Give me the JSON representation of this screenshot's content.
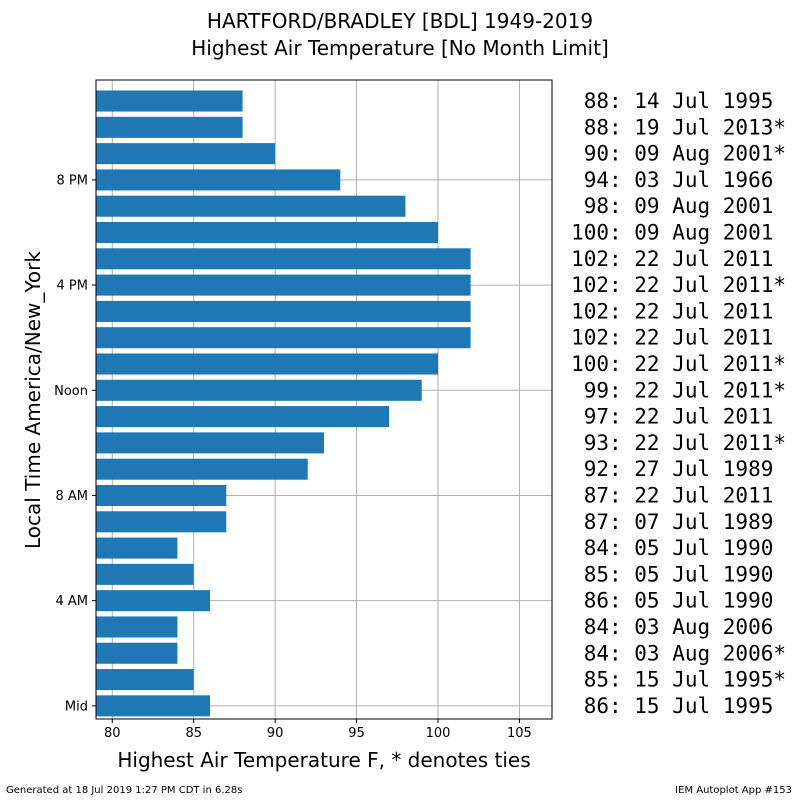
{
  "header": {
    "title_line1": "HARTFORD/BRADLEY [BDL] 1949-2019",
    "title_line2": "Highest Air Temperature [No Month Limit]"
  },
  "footer": {
    "left": "Generated at 18 Jul 2019 1:27 PM CDT in 6.28s",
    "right": "IEM Autoplot App #153"
  },
  "chart_data": {
    "type": "bar",
    "orientation": "horizontal",
    "xlabel": "Highest Air Temperature F, * denotes ties",
    "ylabel": "Local Time America/New_York",
    "xlim": [
      79,
      107
    ],
    "x_ticks": [
      80,
      85,
      90,
      95,
      100,
      105
    ],
    "y_ticks": [
      {
        "hour": 0,
        "label": "Mid"
      },
      {
        "hour": 4,
        "label": "4 AM"
      },
      {
        "hour": 8,
        "label": "8 AM"
      },
      {
        "hour": 12,
        "label": "Noon"
      },
      {
        "hour": 16,
        "label": "4 PM"
      },
      {
        "hour": 20,
        "label": "8 PM"
      }
    ],
    "grid": true,
    "bar_color": "#1f77b4",
    "hours": [
      0,
      1,
      2,
      3,
      4,
      5,
      6,
      7,
      8,
      9,
      10,
      11,
      12,
      13,
      14,
      15,
      16,
      17,
      18,
      19,
      20,
      21,
      22,
      23
    ],
    "values": [
      86,
      85,
      84,
      84,
      86,
      85,
      84,
      87,
      87,
      92,
      93,
      97,
      99,
      100,
      102,
      102,
      102,
      102,
      100,
      98,
      94,
      90,
      88,
      88
    ],
    "annotations": [
      "86: 15 Jul 1995",
      "85: 15 Jul 1995*",
      "84: 03 Aug 2006*",
      "84: 03 Aug 2006",
      "86: 05 Jul 1990",
      "85: 05 Jul 1990",
      "84: 05 Jul 1990",
      "87: 07 Jul 1989",
      "87: 22 Jul 2011",
      "92: 27 Jul 1989",
      "93: 22 Jul 2011*",
      "97: 22 Jul 2011",
      "99: 22 Jul 2011*",
      "100: 22 Jul 2011*",
      "102: 22 Jul 2011",
      "102: 22 Jul 2011",
      "102: 22 Jul 2011*",
      "102: 22 Jul 2011",
      "100: 09 Aug 2001",
      "98: 09 Aug 2001",
      "94: 03 Jul 1966",
      "90: 09 Aug 2001*",
      "88: 19 Jul 2013*",
      "88: 14 Jul 1995"
    ]
  }
}
